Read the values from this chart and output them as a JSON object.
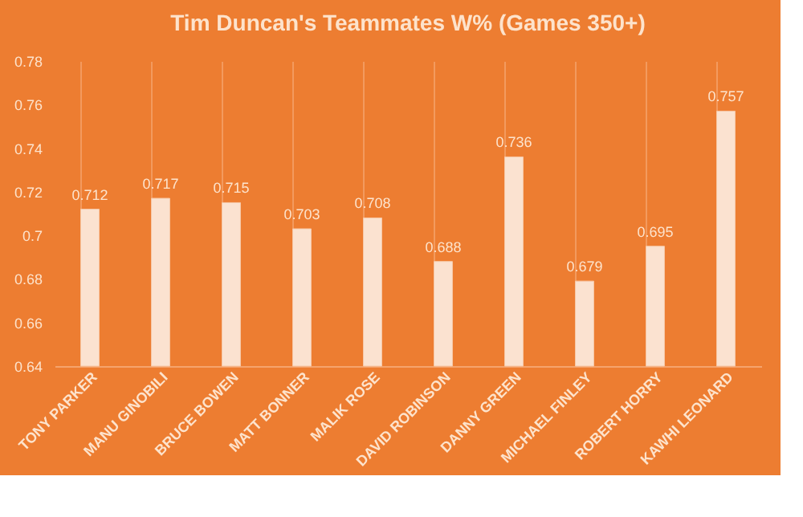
{
  "chart_data": {
    "type": "bar",
    "title": "Tim Duncan's Teammates W% (Games 350+)",
    "categories": [
      "TONY PARKER",
      "MANU GINOBILI",
      "BRUCE BOWEN",
      "MATT BONNER",
      "MALIK ROSE",
      "DAVID ROBINSON",
      "DANNY GREEN",
      "MICHAEL FINLEY",
      "ROBERT HORRY",
      "KAWHI LEONARD"
    ],
    "values": [
      0.712,
      0.717,
      0.715,
      0.703,
      0.708,
      0.688,
      0.736,
      0.679,
      0.695,
      0.757
    ],
    "color": "#fbe2d0",
    "ylim": [
      0.64,
      0.78
    ],
    "yticks": [
      0.64,
      0.66,
      0.68,
      0.7,
      0.72,
      0.74,
      0.76,
      0.78
    ],
    "grid": "x",
    "data_labels": true
  }
}
